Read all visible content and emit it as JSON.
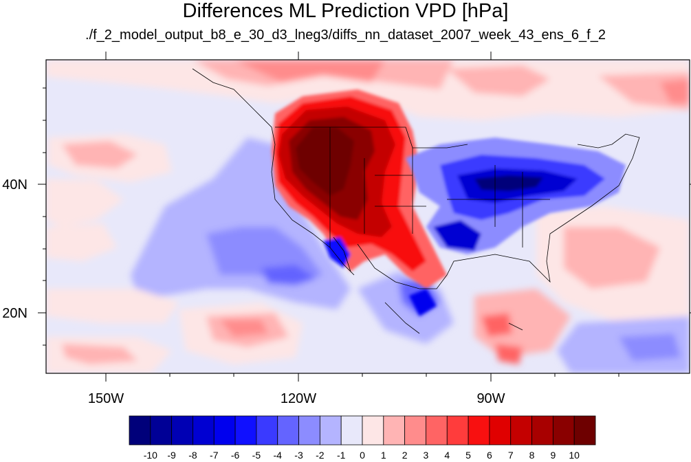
{
  "title": "Differences ML Prediction VPD [hPa]",
  "subtitle": "./f_2_model_output_b8_e_30_d3_lneg3/diffs_nn_dataset_2007_week_43_ens_6_f_2",
  "lat_labels": [
    "40N",
    "20N"
  ],
  "lon_labels": [
    "150W",
    "120W",
    "90W"
  ],
  "colorbar": {
    "labels": [
      "-10",
      "-9",
      "-8",
      "-7",
      "-6",
      "-5",
      "-4",
      "-3",
      "-2",
      "-1",
      "0",
      "1",
      "2",
      "3",
      "4",
      "5",
      "6",
      "7",
      "8",
      "9",
      "10"
    ],
    "colors": [
      "#00007a",
      "#000096",
      "#0000b4",
      "#0000d2",
      "#0000ee",
      "#1010ff",
      "#3a3aff",
      "#6464ff",
      "#8c8cff",
      "#b4b4ff",
      "#e8e8fa",
      "#fde6e6",
      "#ffb4b4",
      "#ff8c8c",
      "#ff6464",
      "#ff3c3c",
      "#f81010",
      "#e00000",
      "#c40000",
      "#a80000",
      "#8a0000",
      "#6e0000"
    ]
  }
}
